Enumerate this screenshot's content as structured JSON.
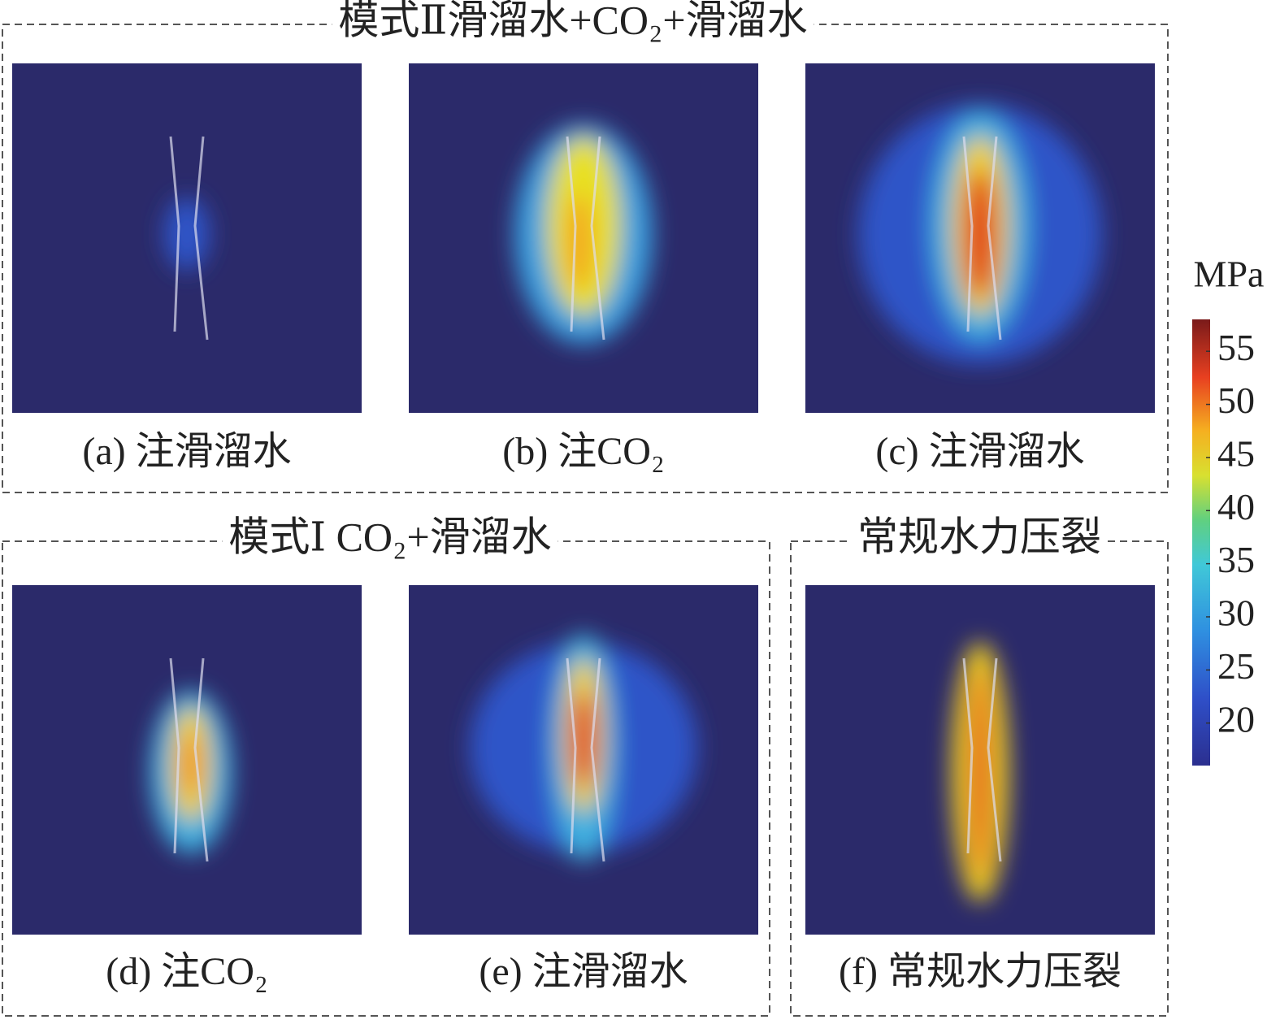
{
  "groups": [
    {
      "title": "模式Ⅱ滑溜水+CO₂+滑溜水",
      "panels": [
        {
          "caption": "(a) 注滑溜水"
        },
        {
          "caption": "(b) 注CO₂"
        },
        {
          "caption": "(c) 注滑溜水"
        }
      ]
    },
    {
      "title": "模式Ⅰ CO₂+滑溜水",
      "panels": [
        {
          "caption": "(d) 注CO₂"
        },
        {
          "caption": "(e) 注滑溜水"
        }
      ]
    },
    {
      "title": "常规水力压裂",
      "panels": [
        {
          "caption": "(f) 常规水力压裂"
        }
      ]
    }
  ],
  "colorbar": {
    "label": "MPa",
    "range": [
      16,
      58
    ],
    "ticks": [
      20,
      25,
      30,
      35,
      40,
      45,
      50,
      55
    ]
  }
}
